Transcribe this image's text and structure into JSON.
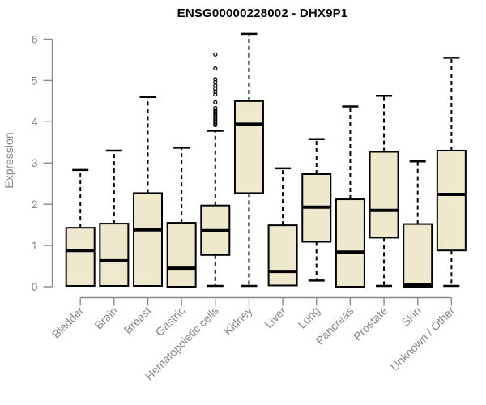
{
  "chart_data": {
    "type": "box",
    "title": "ENSG00000228002 - DHX9P1",
    "ylabel": "Expression",
    "xlabel": "",
    "ylim": [
      0,
      6
    ],
    "yticks": [
      0,
      1,
      2,
      3,
      4,
      5,
      6
    ],
    "grid": false,
    "legend": "none",
    "colors": {
      "box_fill": "#EEE8CD",
      "box_stroke": "#000000",
      "median": "#000000",
      "whisker": "#000000",
      "axis": "#888888",
      "tick_label": "#888888",
      "title": "#000000"
    },
    "categories": [
      "Bladder",
      "Brain",
      "Breast",
      "Gastric",
      "Hematopoietic cells",
      "Kidney",
      "Liver",
      "Lung",
      "Pancreas",
      "Prostate",
      "Skin",
      "Unknown / Other"
    ],
    "boxes": [
      {
        "category": "Bladder",
        "whisker_low": null,
        "q1": 0.02,
        "median": 0.88,
        "q3": 1.43,
        "whisker_high": 2.83,
        "outliers": []
      },
      {
        "category": "Brain",
        "whisker_low": null,
        "q1": 0.02,
        "median": 0.63,
        "q3": 1.53,
        "whisker_high": 3.3,
        "outliers": []
      },
      {
        "category": "Breast",
        "whisker_low": null,
        "q1": 0.02,
        "median": 1.38,
        "q3": 2.27,
        "whisker_high": 4.6,
        "outliers": []
      },
      {
        "category": "Gastric",
        "whisker_low": null,
        "q1": 0.0,
        "median": 0.45,
        "q3": 1.55,
        "whisker_high": 3.37,
        "outliers": []
      },
      {
        "category": "Hematopoietic cells",
        "whisker_low": 0.02,
        "q1": 0.77,
        "median": 1.36,
        "q3": 1.97,
        "whisker_high": 3.78,
        "outliers": [
          3.92,
          3.96,
          4.0,
          4.04,
          4.08,
          4.12,
          4.16,
          4.2,
          4.24,
          4.28,
          4.33,
          4.47,
          4.66,
          4.73,
          4.8,
          4.88,
          4.96,
          5.03,
          5.29,
          5.63
        ]
      },
      {
        "category": "Kidney",
        "whisker_low": 0.02,
        "q1": 2.27,
        "median": 3.94,
        "q3": 4.5,
        "whisker_high": 6.13,
        "outliers": []
      },
      {
        "category": "Liver",
        "whisker_low": null,
        "q1": 0.03,
        "median": 0.37,
        "q3": 1.49,
        "whisker_high": 2.87,
        "outliers": []
      },
      {
        "category": "Lung",
        "whisker_low": 0.15,
        "q1": 1.09,
        "median": 1.93,
        "q3": 2.73,
        "whisker_high": 3.58,
        "outliers": []
      },
      {
        "category": "Pancreas",
        "whisker_low": null,
        "q1": 0.0,
        "median": 0.84,
        "q3": 2.12,
        "whisker_high": 4.37,
        "outliers": []
      },
      {
        "category": "Prostate",
        "whisker_low": 0.02,
        "q1": 1.19,
        "median": 1.85,
        "q3": 3.27,
        "whisker_high": 4.63,
        "outliers": []
      },
      {
        "category": "Skin",
        "whisker_low": null,
        "q1": 0.0,
        "median": 0.05,
        "q3": 1.52,
        "whisker_high": 3.04,
        "outliers": []
      },
      {
        "category": "Unknown / Other",
        "whisker_low": 0.02,
        "q1": 0.88,
        "median": 2.24,
        "q3": 3.3,
        "whisker_high": 5.55,
        "outliers": []
      }
    ]
  }
}
